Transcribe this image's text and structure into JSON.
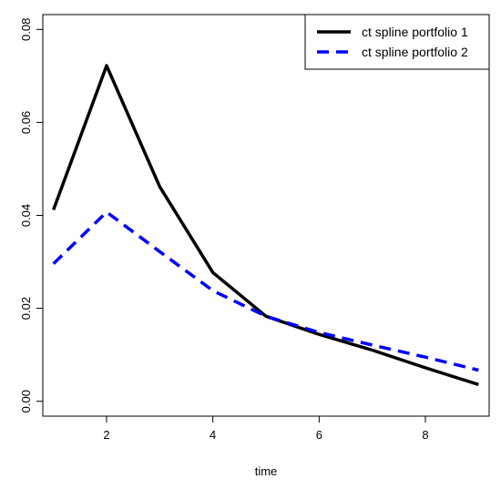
{
  "chart_data": {
    "type": "line",
    "title": "",
    "xlabel": "time",
    "ylabel": "",
    "xlim": [
      0.8,
      9.2
    ],
    "ylim": [
      -0.0032,
      0.0832
    ],
    "x_ticks": [
      2,
      4,
      6,
      8
    ],
    "x_tick_labels": [
      "2",
      "4",
      "6",
      "8"
    ],
    "y_ticks": [
      0.0,
      0.02,
      0.04,
      0.06,
      0.08
    ],
    "y_tick_labels": [
      "0.00",
      "0.02",
      "0.04",
      "0.06",
      "0.08"
    ],
    "grid": false,
    "legend_position": "top-right",
    "x": [
      1,
      2,
      3,
      4,
      5,
      6,
      7,
      8,
      9
    ],
    "series": [
      {
        "name": "ct spline portfolio 1",
        "values": [
          0.0412,
          0.0722,
          0.0462,
          0.0277,
          0.0183,
          0.0144,
          0.011,
          0.0072,
          0.0036
        ],
        "color": "#000000",
        "line_style": "solid"
      },
      {
        "name": "ct spline portfolio 2",
        "values": [
          0.0296,
          0.0407,
          0.0322,
          0.0238,
          0.0183,
          0.0148,
          0.0121,
          0.0095,
          0.0067
        ],
        "color": "#0000ff",
        "line_style": "dashed"
      }
    ]
  }
}
